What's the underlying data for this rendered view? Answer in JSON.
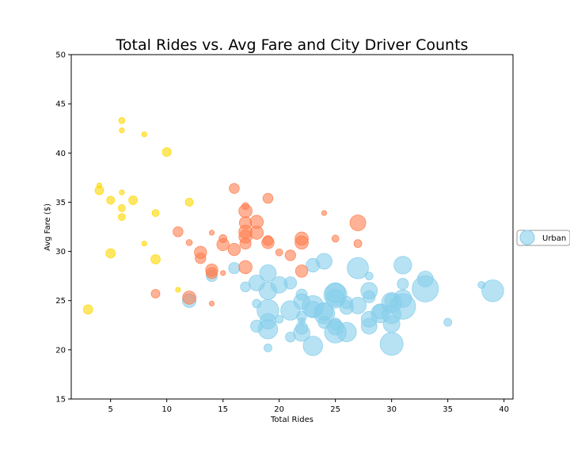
{
  "chart_data": {
    "type": "scatter",
    "title": "Total Rides vs. Avg Fare and City Driver Counts",
    "xlabel": "Total Rides",
    "ylabel": "Avg Fare ($)",
    "xlim": [
      1.5,
      40.8
    ],
    "ylim": [
      15,
      50
    ],
    "xticks": [
      5,
      10,
      15,
      20,
      25,
      30,
      35,
      40
    ],
    "yticks": [
      15,
      20,
      25,
      30,
      35,
      40,
      45,
      50
    ],
    "grid": false,
    "legend": {
      "placement": "right",
      "entries": [
        "Urban"
      ]
    },
    "series": [
      {
        "name": "Urban",
        "color": "#87CEEB",
        "edge_color": "#87CEEB",
        "points": [
          {
            "x": 12,
            "y": 25.0,
            "size": 15
          },
          {
            "x": 14,
            "y": 27.5,
            "size": 10
          },
          {
            "x": 16,
            "y": 28.3,
            "size": 10
          },
          {
            "x": 17,
            "y": 26.4,
            "size": 8
          },
          {
            "x": 18,
            "y": 24.7,
            "size": 6
          },
          {
            "x": 18,
            "y": 22.4,
            "size": 12
          },
          {
            "x": 18,
            "y": 26.8,
            "size": 20
          },
          {
            "x": 19,
            "y": 20.2,
            "size": 5
          },
          {
            "x": 19,
            "y": 22.1,
            "size": 30
          },
          {
            "x": 19,
            "y": 22.9,
            "size": 20
          },
          {
            "x": 19,
            "y": 24.0,
            "size": 38
          },
          {
            "x": 19,
            "y": 26.0,
            "size": 25
          },
          {
            "x": 19,
            "y": 27.8,
            "size": 22
          },
          {
            "x": 20,
            "y": 26.6,
            "size": 22
          },
          {
            "x": 20,
            "y": 23.1,
            "size": 5
          },
          {
            "x": 21,
            "y": 21.3,
            "size": 8
          },
          {
            "x": 21,
            "y": 24.0,
            "size": 30
          },
          {
            "x": 21,
            "y": 26.8,
            "size": 12
          },
          {
            "x": 22,
            "y": 21.7,
            "size": 22
          },
          {
            "x": 22,
            "y": 22.2,
            "size": 12
          },
          {
            "x": 22,
            "y": 23.4,
            "size": 8
          },
          {
            "x": 22,
            "y": 24.9,
            "size": 20
          },
          {
            "x": 22,
            "y": 25.6,
            "size": 10
          },
          {
            "x": 22,
            "y": 22.9,
            "size": 4
          },
          {
            "x": 23,
            "y": 20.4,
            "size": 30
          },
          {
            "x": 23,
            "y": 24.1,
            "size": 22
          },
          {
            "x": 23,
            "y": 24.4,
            "size": 38
          },
          {
            "x": 23,
            "y": 28.6,
            "size": 15
          },
          {
            "x": 24,
            "y": 22.8,
            "size": 12
          },
          {
            "x": 24,
            "y": 23.7,
            "size": 35
          },
          {
            "x": 24,
            "y": 23.9,
            "size": 25
          },
          {
            "x": 24,
            "y": 29.0,
            "size": 20
          },
          {
            "x": 25,
            "y": 21.8,
            "size": 38
          },
          {
            "x": 25,
            "y": 22.3,
            "size": 20
          },
          {
            "x": 25,
            "y": 22.6,
            "size": 12
          },
          {
            "x": 25,
            "y": 25.2,
            "size": 28
          },
          {
            "x": 25,
            "y": 25.6,
            "size": 42
          },
          {
            "x": 25,
            "y": 25.8,
            "size": 32
          },
          {
            "x": 26,
            "y": 21.8,
            "size": 30
          },
          {
            "x": 26,
            "y": 24.3,
            "size": 15
          },
          {
            "x": 26,
            "y": 24.8,
            "size": 12
          },
          {
            "x": 27,
            "y": 24.5,
            "size": 22
          },
          {
            "x": 27,
            "y": 28.3,
            "size": 36
          },
          {
            "x": 28,
            "y": 22.4,
            "size": 20
          },
          {
            "x": 28,
            "y": 23.1,
            "size": 20
          },
          {
            "x": 28,
            "y": 25.4,
            "size": 12
          },
          {
            "x": 28,
            "y": 26.0,
            "size": 22
          },
          {
            "x": 28,
            "y": 27.5,
            "size": 5
          },
          {
            "x": 29,
            "y": 23.7,
            "size": 28
          },
          {
            "x": 29,
            "y": 23.9,
            "size": 18
          },
          {
            "x": 30,
            "y": 20.6,
            "size": 42
          },
          {
            "x": 30,
            "y": 22.6,
            "size": 22
          },
          {
            "x": 30,
            "y": 23.6,
            "size": 28
          },
          {
            "x": 30,
            "y": 24.8,
            "size": 32
          },
          {
            "x": 30,
            "y": 25.0,
            "size": 15
          },
          {
            "x": 31,
            "y": 24.4,
            "size": 52
          },
          {
            "x": 31,
            "y": 25.2,
            "size": 25
          },
          {
            "x": 31,
            "y": 26.7,
            "size": 10
          },
          {
            "x": 31,
            "y": 28.6,
            "size": 25
          },
          {
            "x": 33,
            "y": 26.2,
            "size": 55
          },
          {
            "x": 33,
            "y": 27.2,
            "size": 20
          },
          {
            "x": 35,
            "y": 22.8,
            "size": 5
          },
          {
            "x": 38,
            "y": 26.6,
            "size": 4
          },
          {
            "x": 39,
            "y": 26.0,
            "size": 38
          }
        ]
      },
      {
        "name": "",
        "color": "#FF7F50",
        "edge_color": "#FF7F50",
        "points": [
          {
            "x": 9,
            "y": 25.7,
            "size": 6
          },
          {
            "x": 11,
            "y": 32.0,
            "size": 8
          },
          {
            "x": 12,
            "y": 30.9,
            "size": 3
          },
          {
            "x": 12,
            "y": 25.3,
            "size": 14
          },
          {
            "x": 13,
            "y": 29.3,
            "size": 9
          },
          {
            "x": 13,
            "y": 29.9,
            "size": 12
          },
          {
            "x": 14,
            "y": 24.7,
            "size": 2
          },
          {
            "x": 14,
            "y": 27.8,
            "size": 10
          },
          {
            "x": 14,
            "y": 28.1,
            "size": 12
          },
          {
            "x": 14,
            "y": 31.9,
            "size": 2
          },
          {
            "x": 15,
            "y": 27.8,
            "size": 2
          },
          {
            "x": 15,
            "y": 30.7,
            "size": 12
          },
          {
            "x": 15,
            "y": 31.3,
            "size": 5
          },
          {
            "x": 16,
            "y": 30.2,
            "size": 12
          },
          {
            "x": 16,
            "y": 36.4,
            "size": 8
          },
          {
            "x": 17,
            "y": 28.4,
            "size": 14
          },
          {
            "x": 17,
            "y": 30.8,
            "size": 10
          },
          {
            "x": 17,
            "y": 31.5,
            "size": 14
          },
          {
            "x": 17,
            "y": 32.0,
            "size": 14
          },
          {
            "x": 17,
            "y": 32.9,
            "size": 12
          },
          {
            "x": 17,
            "y": 34.1,
            "size": 14
          },
          {
            "x": 17,
            "y": 34.6,
            "size": 4
          },
          {
            "x": 18,
            "y": 31.9,
            "size": 14
          },
          {
            "x": 18,
            "y": 33.0,
            "size": 14
          },
          {
            "x": 19,
            "y": 30.9,
            "size": 12
          },
          {
            "x": 19,
            "y": 31.1,
            "size": 8
          },
          {
            "x": 19,
            "y": 35.4,
            "size": 8
          },
          {
            "x": 20,
            "y": 29.9,
            "size": 4
          },
          {
            "x": 21,
            "y": 29.6,
            "size": 9
          },
          {
            "x": 22,
            "y": 28.0,
            "size": 12
          },
          {
            "x": 22,
            "y": 30.9,
            "size": 14
          },
          {
            "x": 22,
            "y": 31.3,
            "size": 14
          },
          {
            "x": 24,
            "y": 33.9,
            "size": 2
          },
          {
            "x": 25,
            "y": 31.3,
            "size": 4
          },
          {
            "x": 27,
            "y": 30.8,
            "size": 5
          },
          {
            "x": 27,
            "y": 32.9,
            "size": 20
          }
        ]
      },
      {
        "name": "",
        "color": "#FFD700",
        "edge_color": "#FFD700",
        "points": [
          {
            "x": 3,
            "y": 24.1,
            "size": 7
          },
          {
            "x": 4,
            "y": 36.2,
            "size": 6
          },
          {
            "x": 4,
            "y": 36.7,
            "size": 2
          },
          {
            "x": 5,
            "y": 29.8,
            "size": 7
          },
          {
            "x": 5,
            "y": 35.2,
            "size": 5
          },
          {
            "x": 6,
            "y": 33.5,
            "size": 4
          },
          {
            "x": 6,
            "y": 34.4,
            "size": 4
          },
          {
            "x": 6,
            "y": 36.0,
            "size": 2
          },
          {
            "x": 6,
            "y": 42.3,
            "size": 2
          },
          {
            "x": 6,
            "y": 43.3,
            "size": 3
          },
          {
            "x": 7,
            "y": 35.2,
            "size": 6
          },
          {
            "x": 8,
            "y": 30.8,
            "size": 2
          },
          {
            "x": 8,
            "y": 41.9,
            "size": 2
          },
          {
            "x": 9,
            "y": 29.2,
            "size": 7
          },
          {
            "x": 9,
            "y": 33.9,
            "size": 4
          },
          {
            "x": 10,
            "y": 40.1,
            "size": 6
          },
          {
            "x": 11,
            "y": 26.1,
            "size": 2
          },
          {
            "x": 12,
            "y": 35.0,
            "size": 5
          }
        ]
      }
    ]
  }
}
